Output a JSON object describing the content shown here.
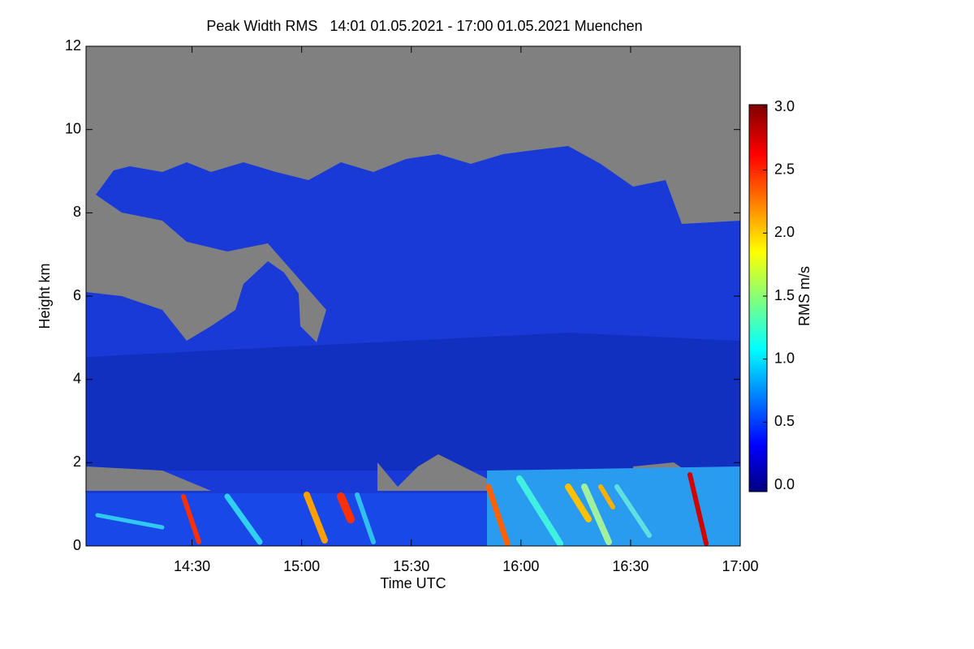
{
  "chart_data": {
    "type": "heatmap",
    "title": "Peak Width RMS   14:01 01.05.2021 - 17:00 01.05.2021 Muenchen",
    "x_label": "Time UTC",
    "y_label": "Height km",
    "xlim": [
      841,
      1020
    ],
    "xticks": [
      {
        "value": 870,
        "label": "14:30"
      },
      {
        "value": 900,
        "label": "15:00"
      },
      {
        "value": 930,
        "label": "15:30"
      },
      {
        "value": 960,
        "label": "16:00"
      },
      {
        "value": 990,
        "label": "16:30"
      },
      {
        "value": 1020,
        "label": "17:00"
      }
    ],
    "ylim": [
      0,
      12
    ],
    "yticks": [
      0,
      2,
      4,
      6,
      8,
      10,
      12
    ],
    "colorbar": {
      "label": "RMS m/s",
      "lim": [
        0,
        3
      ],
      "ticks": [
        {
          "value": 0,
          "label": "0.0"
        },
        {
          "value": 0.5,
          "label": "0.5"
        },
        {
          "value": 1,
          "label": "1.0"
        },
        {
          "value": 1.5,
          "label": "1.5"
        },
        {
          "value": 2,
          "label": "2.0"
        },
        {
          "value": 2.5,
          "label": "2.5"
        },
        {
          "value": 3,
          "label": "3.0"
        }
      ]
    }
  }
}
